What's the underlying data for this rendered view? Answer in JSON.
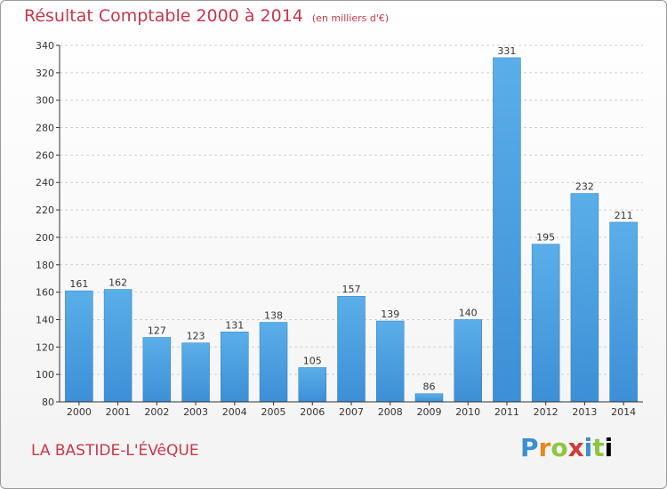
{
  "header": {
    "title": "Résultat Comptable 2000 à 2014",
    "subtitle": "(en milliers d'€)"
  },
  "footer": {
    "commune": "LA BASTIDE-L'ÉVêQUE",
    "brand": "Proxiti",
    "brand_colors": [
      "#3a8fd0",
      "#e08a20",
      "#8cc63f",
      "#d43a3a",
      "#3a8fd0",
      "#8cc63f"
    ]
  },
  "chart_data": {
    "type": "bar",
    "categories": [
      "2000",
      "2001",
      "2002",
      "2003",
      "2004",
      "2005",
      "2006",
      "2007",
      "2008",
      "2009",
      "2010",
      "2011",
      "2012",
      "2013",
      "2014"
    ],
    "values": [
      161,
      162,
      127,
      123,
      131,
      138,
      105,
      157,
      139,
      86,
      140,
      331,
      195,
      232,
      211
    ],
    "ylim": [
      80,
      340
    ],
    "yticks": [
      80,
      100,
      120,
      140,
      160,
      180,
      200,
      220,
      240,
      260,
      280,
      300,
      320,
      340
    ],
    "grid": true,
    "bar_color": "#3d8fd6",
    "bar_color_light": "#5aaee8"
  }
}
